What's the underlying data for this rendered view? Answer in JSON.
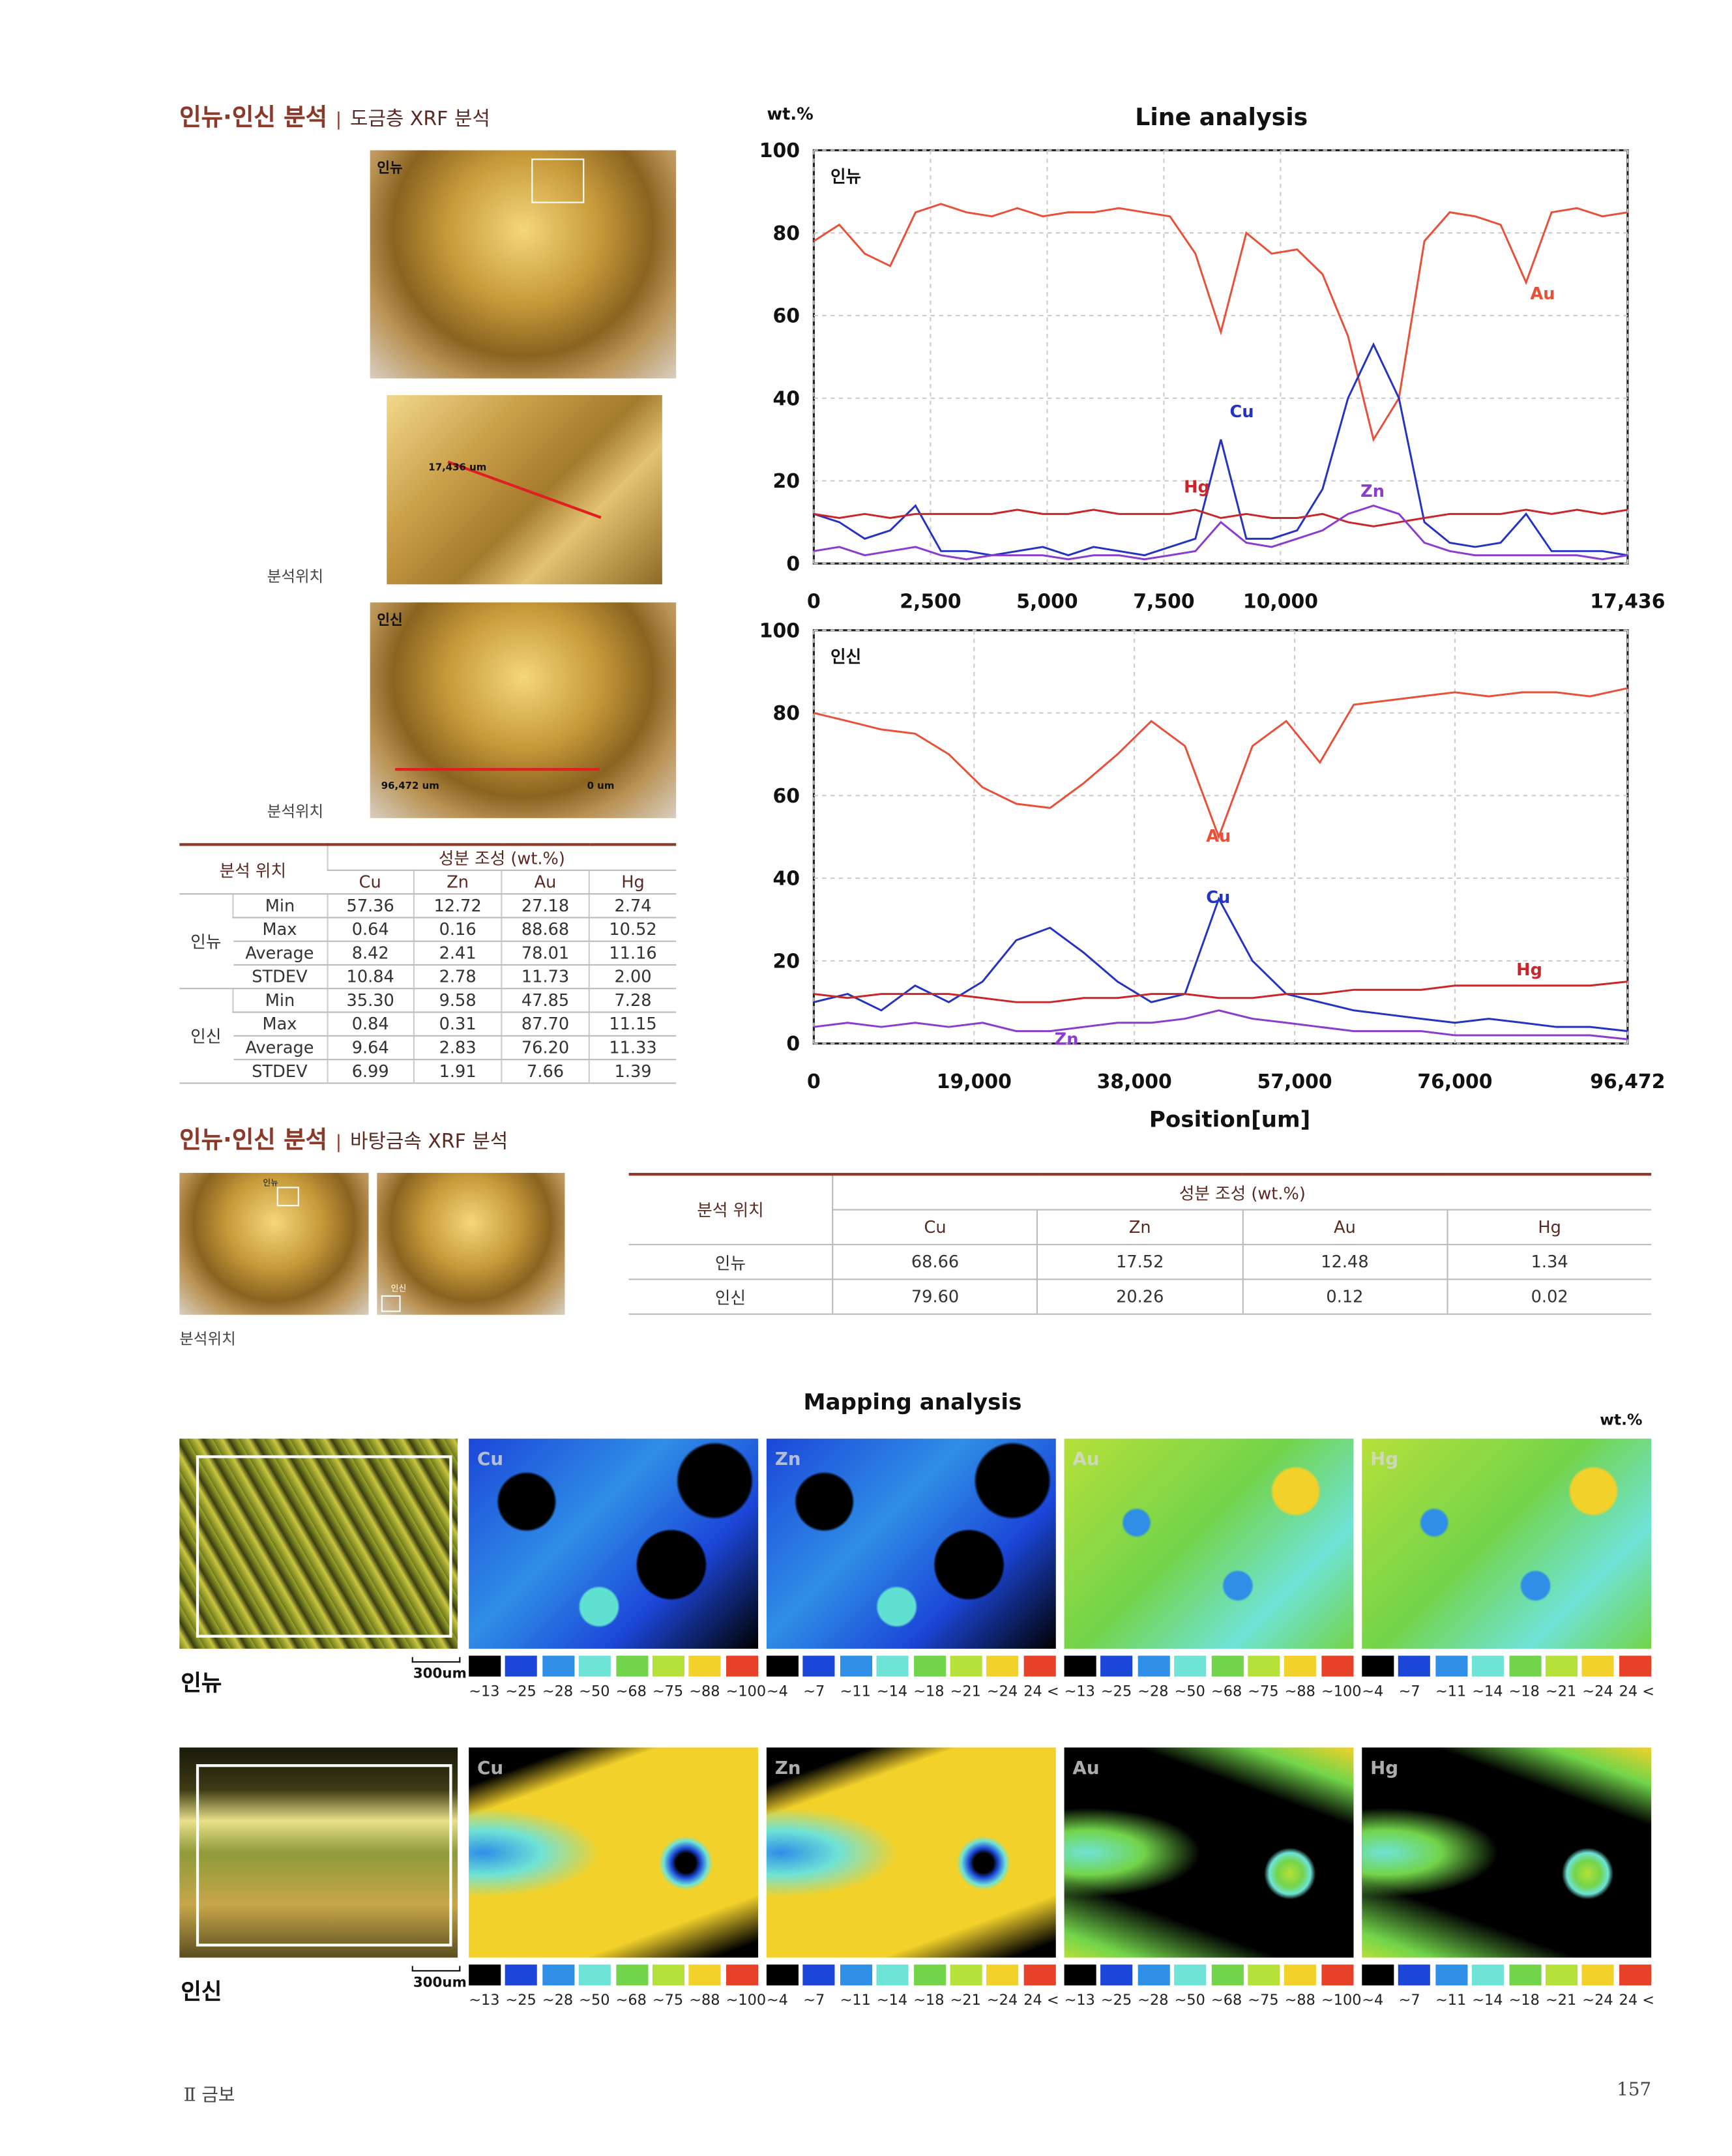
{
  "section1": {
    "title": "인뉴·인신 분석",
    "subtitle": "도금층 XRF 분석"
  },
  "photos1": {
    "top_label": "인뉴",
    "detail_length": "17,436 um",
    "caption1": "분석위치",
    "bottom_label": "인신",
    "bottom_length": "96,472 um",
    "bottom_zero": "0 um",
    "caption2": "분석위치"
  },
  "table1": {
    "header_pos": "분석 위치",
    "header_comp": "성분 조성 (wt.%)",
    "columns": [
      "Cu",
      "Zn",
      "Au",
      "Hg"
    ],
    "groups": [
      {
        "name": "인뉴",
        "rows": [
          [
            "Min",
            "57.36",
            "12.72",
            "27.18",
            "2.74"
          ],
          [
            "Max",
            "0.64",
            "0.16",
            "88.68",
            "10.52"
          ],
          [
            "Average",
            "8.42",
            "2.41",
            "78.01",
            "11.16"
          ],
          [
            "STDEV",
            "10.84",
            "2.78",
            "11.73",
            "2.00"
          ]
        ]
      },
      {
        "name": "인신",
        "rows": [
          [
            "Min",
            "35.30",
            "9.58",
            "47.85",
            "7.28"
          ],
          [
            "Max",
            "0.84",
            "0.31",
            "87.70",
            "11.15"
          ],
          [
            "Average",
            "9.64",
            "2.83",
            "76.20",
            "11.33"
          ],
          [
            "STDEV",
            "6.99",
            "1.91",
            "7.66",
            "1.39"
          ]
        ]
      }
    ]
  },
  "chart_data": [
    {
      "type": "line",
      "title": "Line analysis",
      "ylabel": "wt.%",
      "panel_label": "인뉴",
      "x": [
        0,
        545,
        1090,
        1635,
        2180,
        2725,
        3270,
        3815,
        4360,
        4905,
        5450,
        5995,
        6540,
        7085,
        7630,
        8175,
        8720,
        9265,
        9810,
        10355,
        10900,
        11445,
        11990,
        12535,
        13080,
        13625,
        14170,
        14715,
        15260,
        15805,
        16350,
        16895,
        17436
      ],
      "xlim": [
        0,
        17436
      ],
      "ylim": [
        0,
        100
      ],
      "xticks": [
        0,
        {
          "value": 2500,
          "label": "2,500"
        },
        {
          "value": 5000,
          "label": "5,000"
        },
        {
          "value": 7500,
          "label": "7,500"
        },
        {
          "value": 10000,
          "label": "10,000"
        },
        {
          "value": 17436,
          "label": "17,436"
        }
      ],
      "yticks": [
        0,
        20,
        40,
        60,
        80,
        100
      ],
      "grid": true,
      "series": [
        {
          "name": "Au",
          "color": "#e8503a",
          "values": [
            78,
            82,
            75,
            72,
            85,
            87,
            85,
            84,
            86,
            84,
            85,
            85,
            86,
            85,
            84,
            75,
            56,
            80,
            75,
            76,
            70,
            55,
            30,
            40,
            78,
            85,
            84,
            82,
            68,
            85,
            86,
            84,
            85
          ]
        },
        {
          "name": "Cu",
          "color": "#2433c0",
          "values": [
            12,
            10,
            6,
            8,
            14,
            3,
            3,
            2,
            3,
            4,
            2,
            4,
            3,
            2,
            4,
            6,
            30,
            6,
            6,
            8,
            18,
            40,
            53,
            40,
            10,
            5,
            4,
            5,
            12,
            3,
            3,
            3,
            2
          ]
        },
        {
          "name": "Hg",
          "color": "#c8262a",
          "values": [
            12,
            11,
            12,
            11,
            12,
            12,
            12,
            12,
            13,
            12,
            12,
            13,
            12,
            12,
            12,
            13,
            11,
            12,
            11,
            11,
            12,
            10,
            9,
            10,
            11,
            12,
            12,
            12,
            13,
            12,
            13,
            12,
            13
          ]
        },
        {
          "name": "Zn",
          "color": "#8a3ccf",
          "values": [
            3,
            4,
            2,
            3,
            4,
            2,
            1,
            2,
            2,
            2,
            1,
            2,
            2,
            1,
            2,
            3,
            10,
            5,
            4,
            6,
            8,
            12,
            14,
            12,
            5,
            3,
            2,
            2,
            2,
            2,
            2,
            1,
            2
          ]
        }
      ]
    },
    {
      "type": "line",
      "xlabel": "Position[um]",
      "panel_label": "인신",
      "x": [
        0,
        4000,
        8000,
        12000,
        16000,
        20000,
        24000,
        28000,
        32000,
        36000,
        40000,
        44000,
        48000,
        52000,
        56000,
        60000,
        64000,
        68000,
        72000,
        76000,
        80000,
        84000,
        88000,
        92000,
        96472
      ],
      "xlim": [
        0,
        96472
      ],
      "ylim": [
        0,
        100
      ],
      "xticks": [
        0,
        {
          "value": 19000,
          "label": "19,000"
        },
        {
          "value": 38000,
          "label": "38,000"
        },
        {
          "value": 57000,
          "label": "57,000"
        },
        {
          "value": 76000,
          "label": "76,000"
        },
        {
          "value": 96472,
          "label": "96,472"
        }
      ],
      "yticks": [
        0,
        20,
        40,
        60,
        80,
        100
      ],
      "grid": true,
      "series": [
        {
          "name": "Au",
          "color": "#e8503a",
          "values": [
            80,
            78,
            76,
            75,
            70,
            62,
            58,
            57,
            63,
            70,
            78,
            72,
            50,
            72,
            78,
            68,
            82,
            83,
            84,
            85,
            84,
            85,
            85,
            84,
            86
          ]
        },
        {
          "name": "Cu",
          "color": "#2433c0",
          "values": [
            10,
            12,
            8,
            14,
            10,
            15,
            25,
            28,
            22,
            15,
            10,
            12,
            35,
            20,
            12,
            10,
            8,
            7,
            6,
            5,
            6,
            5,
            4,
            4,
            3
          ]
        },
        {
          "name": "Hg",
          "color": "#c8262a",
          "values": [
            12,
            11,
            12,
            12,
            12,
            11,
            10,
            10,
            11,
            11,
            12,
            12,
            11,
            11,
            12,
            12,
            13,
            13,
            13,
            14,
            14,
            14,
            14,
            14,
            15
          ]
        },
        {
          "name": "Zn",
          "color": "#8a3ccf",
          "values": [
            4,
            5,
            4,
            5,
            4,
            5,
            3,
            3,
            4,
            5,
            5,
            6,
            8,
            6,
            5,
            4,
            3,
            3,
            3,
            2,
            2,
            2,
            2,
            2,
            1
          ]
        }
      ]
    }
  ],
  "section2": {
    "title": "인뉴·인신 분석",
    "subtitle": "바탕금속 XRF 분석",
    "photo_label1": "인뉴",
    "photo_label2": "인신",
    "caption": "분석위치"
  },
  "table2": {
    "header_pos": "분석 위치",
    "header_comp": "성분 조성 (wt.%)",
    "columns": [
      "Cu",
      "Zn",
      "Au",
      "Hg"
    ],
    "rows": [
      [
        "인뉴",
        "68.66",
        "17.52",
        "12.48",
        "1.34"
      ],
      [
        "인신",
        "79.60",
        "20.26",
        "0.12",
        "0.02"
      ]
    ]
  },
  "mapping": {
    "title": "Mapping analysis",
    "unit": "wt.%",
    "scale_bar": "300um",
    "rows": [
      "인뉴",
      "인신"
    ],
    "scale_colors": [
      "#000000",
      "#1b46d8",
      "#2f8ee6",
      "#6fe3d6",
      "#72d44a",
      "#b6e03a",
      "#f2d12a",
      "#e8412a"
    ],
    "elements": [
      {
        "name": "Cu",
        "labels": [
          "~13",
          "~25",
          "~28",
          "~50",
          "~68",
          "~75",
          "~88",
          "~100"
        ]
      },
      {
        "name": "Zn",
        "labels": [
          "~4",
          "~7",
          "~11",
          "~14",
          "~18",
          "~21",
          "~24",
          "24 <"
        ]
      },
      {
        "name": "Au",
        "labels": [
          "~13",
          "~25",
          "~28",
          "~50",
          "~68",
          "~75",
          "~88",
          "~100"
        ]
      },
      {
        "name": "Hg",
        "labels": [
          "~4",
          "~7",
          "~11",
          "~14",
          "~18",
          "~21",
          "~24",
          "24 <"
        ]
      }
    ]
  },
  "footer": {
    "chapter": "Ⅱ 금보",
    "page": "157"
  }
}
